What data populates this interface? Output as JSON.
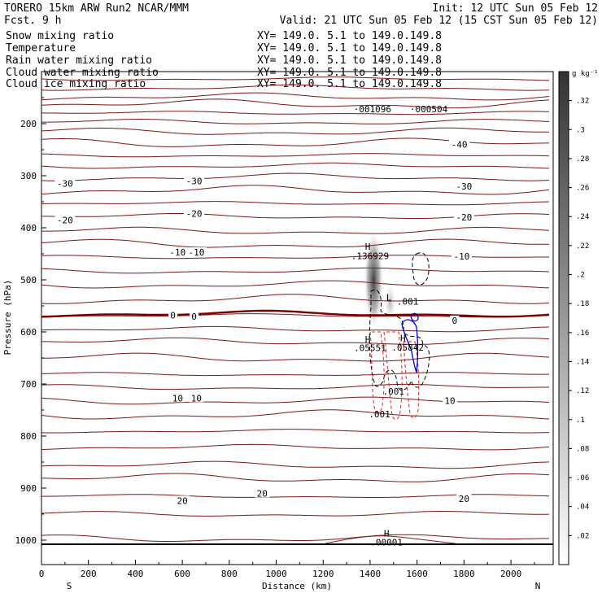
{
  "header": {
    "model": "TORERO  15km ARW   Run2    NCAR/MMM",
    "init": "Init: 12 UTC Sun 05 Feb 12",
    "fcst": "Fcst.    9 h",
    "valid": "Valid: 21 UTC Sun 05 Feb 12 (15 CST Sun 05 Feb 12)"
  },
  "fields": [
    {
      "name": "Snow mixing ratio",
      "xy": "XY= 149.0.  5.1 to 149.0.149.8",
      "color": "#000000"
    },
    {
      "name": "Temperature",
      "xy": "XY= 149.0.  5.1 to 149.0.149.8",
      "color": "#c00000"
    },
    {
      "name": "Rain water mixing ratio",
      "xy": "XY= 149.0.  5.1 to 149.0.149.8",
      "color": "#c00000"
    },
    {
      "name": "Cloud water mixing ratio",
      "xy": "XY= 149.0.  5.1 to 149.0.149.8",
      "color": "#0000b0"
    },
    {
      "name": "Cloud ice mixing ratio",
      "xy": "XY= 149.0.  5.1 to 149.0.149.8",
      "color": "#000000"
    }
  ],
  "colors": {
    "temperature": "#7a1818",
    "rain": "#dd2222",
    "cloud_water": "#0000cc",
    "cloud_ice": "#000000",
    "freezing_line": "#7a0000"
  },
  "chart_data": {
    "type": "cross-section",
    "xlabel": "Distance (km)",
    "ylabel": "Pressure (hPa)",
    "xlim": [
      0,
      2180
    ],
    "ylim": [
      1050,
      130
    ],
    "x_ticks": [
      0,
      200,
      400,
      600,
      800,
      1000,
      1200,
      1400,
      1600,
      1800,
      2000
    ],
    "y_ticks": [
      200,
      300,
      400,
      500,
      600,
      700,
      800,
      900,
      1000
    ],
    "x_end_labels": {
      "left": "S",
      "right": "N"
    },
    "colorbar": {
      "unit": "g kg⁻¹",
      "ticks": [
        ".02",
        ".04",
        ".06",
        ".08",
        ".1",
        ".12",
        ".14",
        ".16",
        ".18",
        ".2",
        ".22",
        ".24",
        ".26",
        ".28",
        ".3",
        ".32"
      ],
      "range": [
        0,
        0.34
      ]
    },
    "isotherm_labels": [
      {
        "x": 1780,
        "p": 240,
        "text": "-40"
      },
      {
        "x": 100,
        "p": 315,
        "text": "-30"
      },
      {
        "x": 650,
        "p": 310,
        "text": "-30"
      },
      {
        "x": 1800,
        "p": 320,
        "text": "-30"
      },
      {
        "x": 100,
        "p": 385,
        "text": "-20"
      },
      {
        "x": 650,
        "p": 373,
        "text": "-20"
      },
      {
        "x": 1800,
        "p": 380,
        "text": "-20"
      },
      {
        "x": 580,
        "p": 447,
        "text": "-10"
      },
      {
        "x": 660,
        "p": 447,
        "text": "-10"
      },
      {
        "x": 1790,
        "p": 455,
        "text": "-10"
      },
      {
        "x": 560,
        "p": 568,
        "text": "0"
      },
      {
        "x": 650,
        "p": 570,
        "text": "0"
      },
      {
        "x": 1760,
        "p": 578,
        "text": "0"
      },
      {
        "x": 580,
        "p": 727,
        "text": "10"
      },
      {
        "x": 660,
        "p": 727,
        "text": "10"
      },
      {
        "x": 1740,
        "p": 732,
        "text": "10"
      },
      {
        "x": 600,
        "p": 924,
        "text": "20"
      },
      {
        "x": 940,
        "p": 910,
        "text": "20"
      },
      {
        "x": 1800,
        "p": 920,
        "text": "20"
      }
    ],
    "maxima_labels": [
      {
        "x": 1410,
        "p": 178,
        "text": "·001096",
        "color": "#000000"
      },
      {
        "x": 1650,
        "p": 178,
        "text": "·000504",
        "color": "#000000"
      },
      {
        "x": 1390,
        "p": 442,
        "text": "H",
        "color": "#000000"
      },
      {
        "x": 1400,
        "p": 460,
        "text": ".136929",
        "color": "#000000"
      },
      {
        "x": 1480,
        "p": 540,
        "text": "L",
        "color": "#000000"
      },
      {
        "x": 1560,
        "p": 548,
        "text": ".001",
        "color": "#000000"
      },
      {
        "x": 1390,
        "p": 620,
        "text": "H",
        "color": "#dd2222"
      },
      {
        "x": 1400,
        "p": 637,
        "text": ".05551",
        "color": "#dd2222"
      },
      {
        "x": 1540,
        "p": 618,
        "text": "H",
        "color": "#0000cc"
      },
      {
        "x": 1560,
        "p": 636,
        "text": ".05842",
        "color": "#0000cc"
      },
      {
        "x": 1500,
        "p": 720,
        "text": ".001",
        "color": "#dd2222"
      },
      {
        "x": 1440,
        "p": 764,
        "text": ".001",
        "color": "#dd2222"
      },
      {
        "x": 1470,
        "p": 993,
        "text": "H",
        "color": "#dd2222"
      },
      {
        "x": 1470,
        "p": 1010,
        "text": ".00001",
        "color": "#dd2222"
      }
    ]
  }
}
